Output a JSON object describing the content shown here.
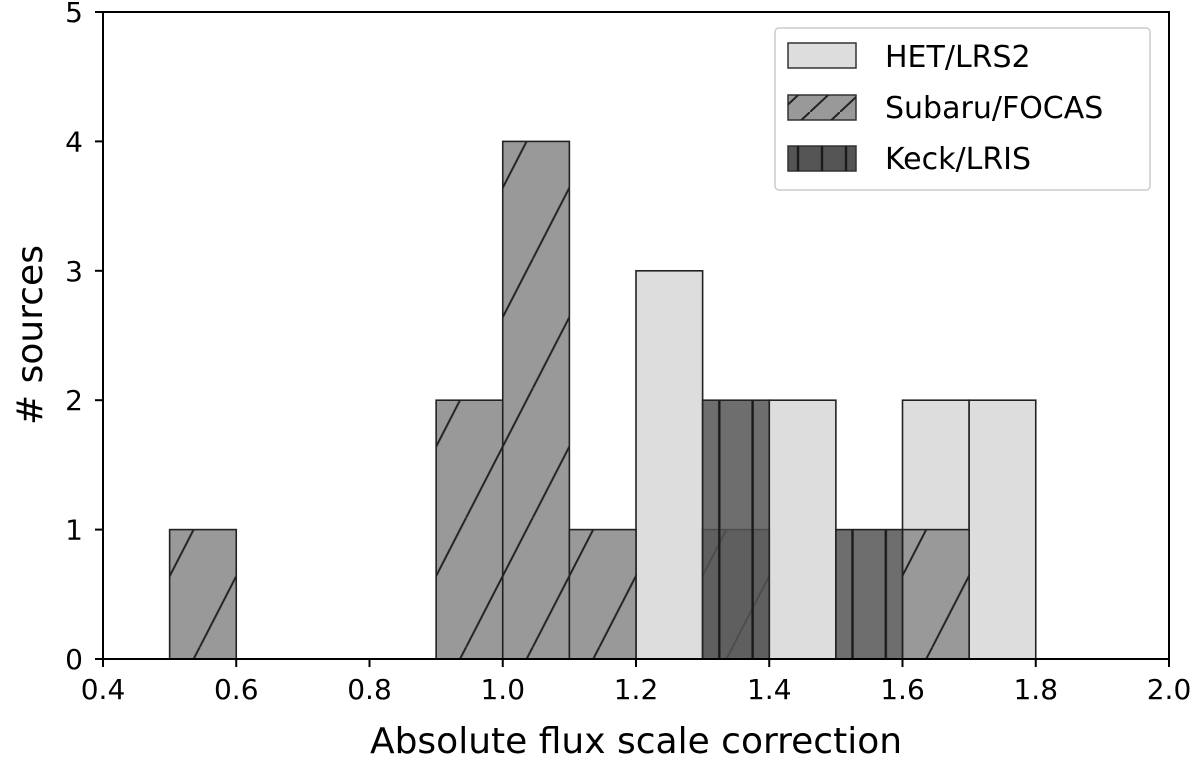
{
  "chart_data": {
    "type": "bar",
    "subtype": "overlapping-histogram",
    "xlabel": "Absolute flux scale correction",
    "ylabel": "# sources",
    "xlim": [
      0.4,
      2.0
    ],
    "ylim": [
      0,
      5
    ],
    "xticks": [
      0.4,
      0.6,
      0.8,
      1.0,
      1.2,
      1.4,
      1.6,
      1.8,
      2.0
    ],
    "xtick_labels": [
      "0.4",
      "0.6",
      "0.8",
      "1.0",
      "1.2",
      "1.4",
      "1.6",
      "1.8",
      "2.0"
    ],
    "yticks": [
      0,
      1,
      2,
      3,
      4,
      5
    ],
    "ytick_labels": [
      "0",
      "1",
      "2",
      "3",
      "4",
      "5"
    ],
    "bin_width": 0.1,
    "legend_position": "top-right",
    "series": [
      {
        "name": "HET/LRS2",
        "color": "#dddddd",
        "hatch": "none",
        "bins": [
          {
            "left": 1.2,
            "count": 3
          },
          {
            "left": 1.4,
            "count": 2
          },
          {
            "left": 1.6,
            "count": 2
          },
          {
            "left": 1.7,
            "count": 2
          }
        ]
      },
      {
        "name": "Subaru/FOCAS",
        "color": "#999999",
        "hatch": "diagonal",
        "bins": [
          {
            "left": 0.5,
            "count": 1
          },
          {
            "left": 0.9,
            "count": 2
          },
          {
            "left": 1.0,
            "count": 4
          },
          {
            "left": 1.1,
            "count": 1
          },
          {
            "left": 1.3,
            "count": 1
          },
          {
            "left": 1.6,
            "count": 1
          }
        ]
      },
      {
        "name": "Keck/LRIS",
        "color": "#555555",
        "hatch": "vertical",
        "bins": [
          {
            "left": 1.3,
            "count": 2
          },
          {
            "left": 1.5,
            "count": 1
          }
        ]
      }
    ]
  }
}
